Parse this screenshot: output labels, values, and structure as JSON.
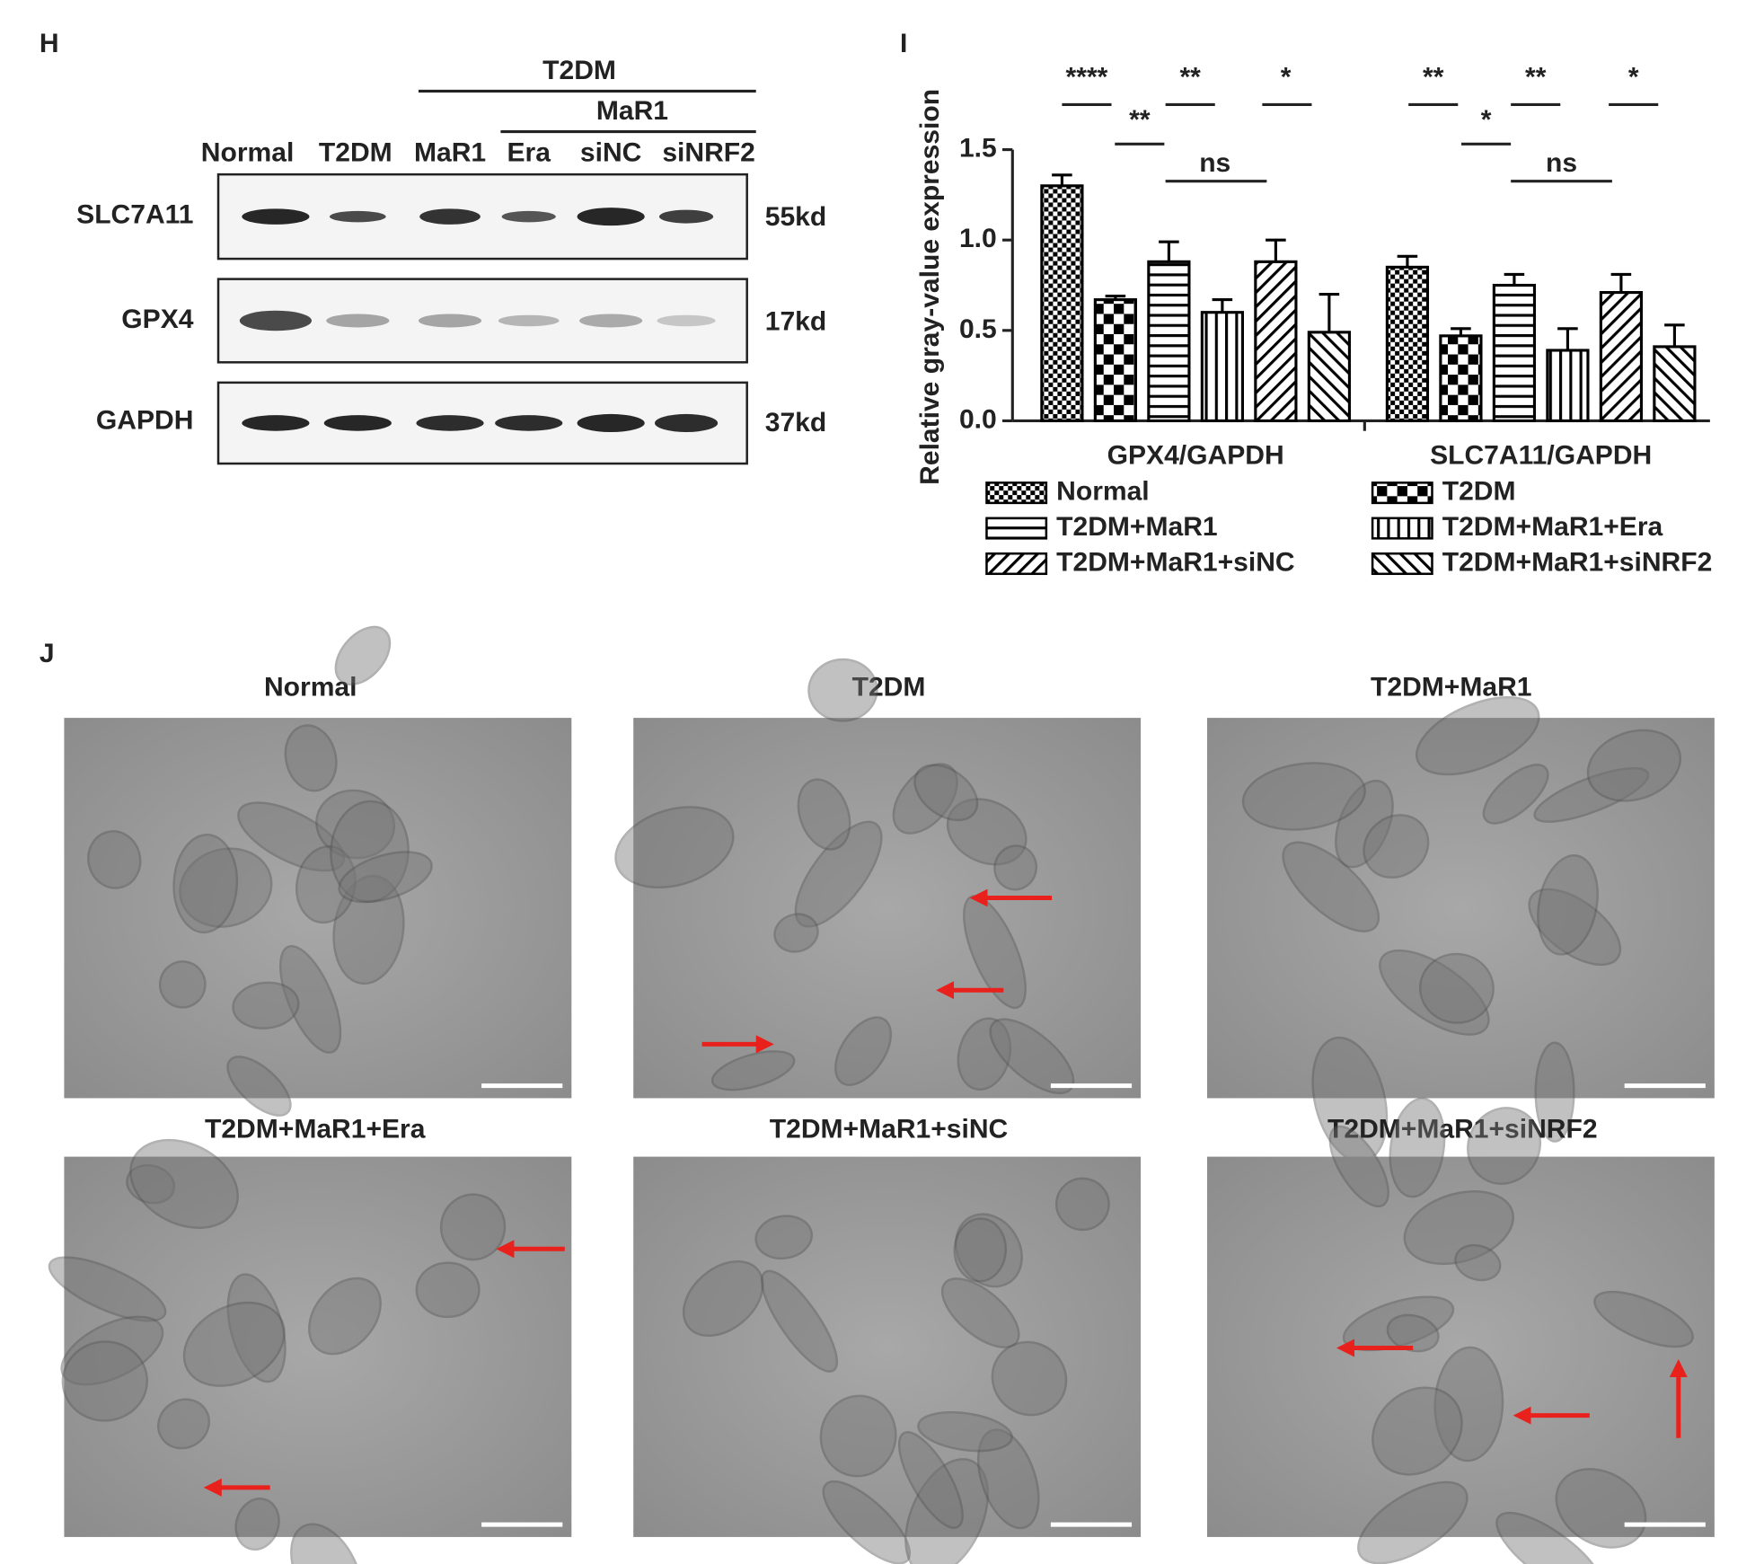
{
  "panel_h": {
    "letter": "H",
    "group_labels": [
      "T2DM",
      "MaR1"
    ],
    "lanes": [
      "Normal",
      "T2DM",
      "MaR1",
      "Era",
      "siNC",
      "siNRF2"
    ],
    "rows": [
      {
        "protein": "SLC7A11",
        "size": "55kd"
      },
      {
        "protein": "GPX4",
        "size": "17kd"
      },
      {
        "protein": "GAPDH",
        "size": "37kd"
      }
    ]
  },
  "chart_data": {
    "type": "bar",
    "panel_label": "I",
    "y_label": "Relative gray-value expression",
    "categories": [
      "GPX4/GAPDH",
      "SLC7A11/GAPDH"
    ],
    "series": [
      {
        "name": "Normal",
        "color": "#000000",
        "pattern": "fine-check",
        "values": [
          1.3,
          0.85
        ],
        "errors": [
          0.06,
          0.06
        ]
      },
      {
        "name": "T2DM",
        "color": "#000000",
        "pattern": "coarse-check",
        "values": [
          0.67,
          0.47
        ],
        "errors": [
          0.02,
          0.04
        ]
      },
      {
        "name": "T2DM+MaR1",
        "color": "#000000",
        "pattern": "horizontal",
        "values": [
          0.88,
          0.75
        ],
        "errors": [
          0.11,
          0.06
        ]
      },
      {
        "name": "T2DM+MaR1+Era",
        "color": "#000000",
        "pattern": "vertical",
        "values": [
          0.6,
          0.39
        ],
        "errors": [
          0.07,
          0.12
        ]
      },
      {
        "name": "T2DM+MaR1+siNC",
        "color": "#000000",
        "pattern": "diagonal-up",
        "values": [
          0.88,
          0.71
        ],
        "errors": [
          0.12,
          0.1
        ]
      },
      {
        "name": "T2DM+MaR1+siNRF2",
        "color": "#000000",
        "pattern": "diagonal-down",
        "values": [
          0.49,
          0.41
        ],
        "errors": [
          0.21,
          0.12
        ]
      }
    ],
    "ylim": [
      0,
      1.5
    ],
    "yticks": [
      {
        "value": 0,
        "label": "0.0"
      },
      {
        "value": 0.5,
        "label": "0.5"
      },
      {
        "value": 1,
        "label": "1.0"
      },
      {
        "value": 1.5,
        "label": "1.5"
      }
    ],
    "annotations": [
      "****",
      "**",
      "**",
      "*",
      "ns",
      "**",
      "*",
      "**",
      "*",
      "ns"
    ]
  },
  "panel_j": {
    "letter": "J",
    "images": [
      {
        "title": "Normal"
      },
      {
        "title": "T2DM"
      },
      {
        "title": "T2DM+MaR1"
      },
      {
        "title": "T2DM+MaR1+Era"
      },
      {
        "title": "T2DM+MaR1+siNC"
      },
      {
        "title": "T2DM+MaR1+siNRF2"
      }
    ]
  }
}
